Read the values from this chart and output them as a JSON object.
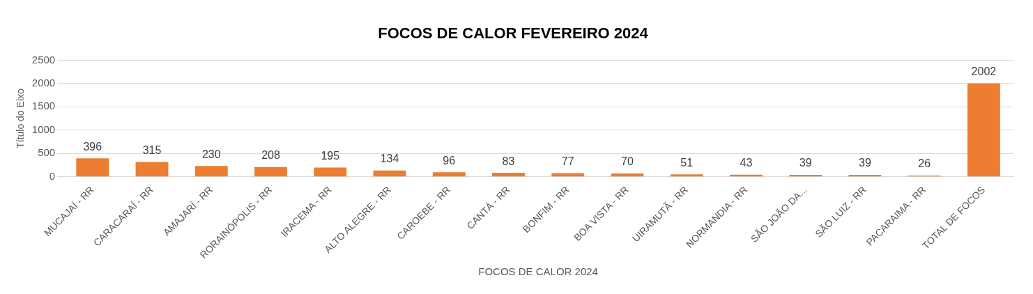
{
  "chart_data": {
    "type": "bar",
    "title": "FOCOS DE CALOR FEVEREIRO 2024",
    "xlabel": "FOCOS DE CALOR 2024",
    "ylabel": "Título do Eixo",
    "categories": [
      "MUCAJAÍ - RR",
      "CARACARAÍ - RR",
      "AMAJARÍ - RR",
      "RORAINÓPOLIS - RR",
      "IRACEMA - RR",
      "ALTO ALEGRE - RR",
      "CAROEBE - RR",
      "CANTÁ - RR",
      "BONFIM - RR",
      "BOA VISTA - RR",
      "UIRAMUTÃ - RR",
      "NORMANDIA - RR",
      "SÃO JOÃO DA...",
      "SÃO LUIZ - RR",
      "PACARAIMA - RR",
      "TOTAL DE FOCOS"
    ],
    "values": [
      396,
      315,
      230,
      208,
      195,
      134,
      96,
      83,
      77,
      70,
      51,
      43,
      39,
      39,
      26,
      2002
    ],
    "color": "#ed7d31",
    "ylim": [
      0,
      2500
    ],
    "yticks": [
      0,
      500,
      1000,
      1500,
      2000,
      2500
    ],
    "grid": "y",
    "data_labels": true,
    "legend": false
  }
}
